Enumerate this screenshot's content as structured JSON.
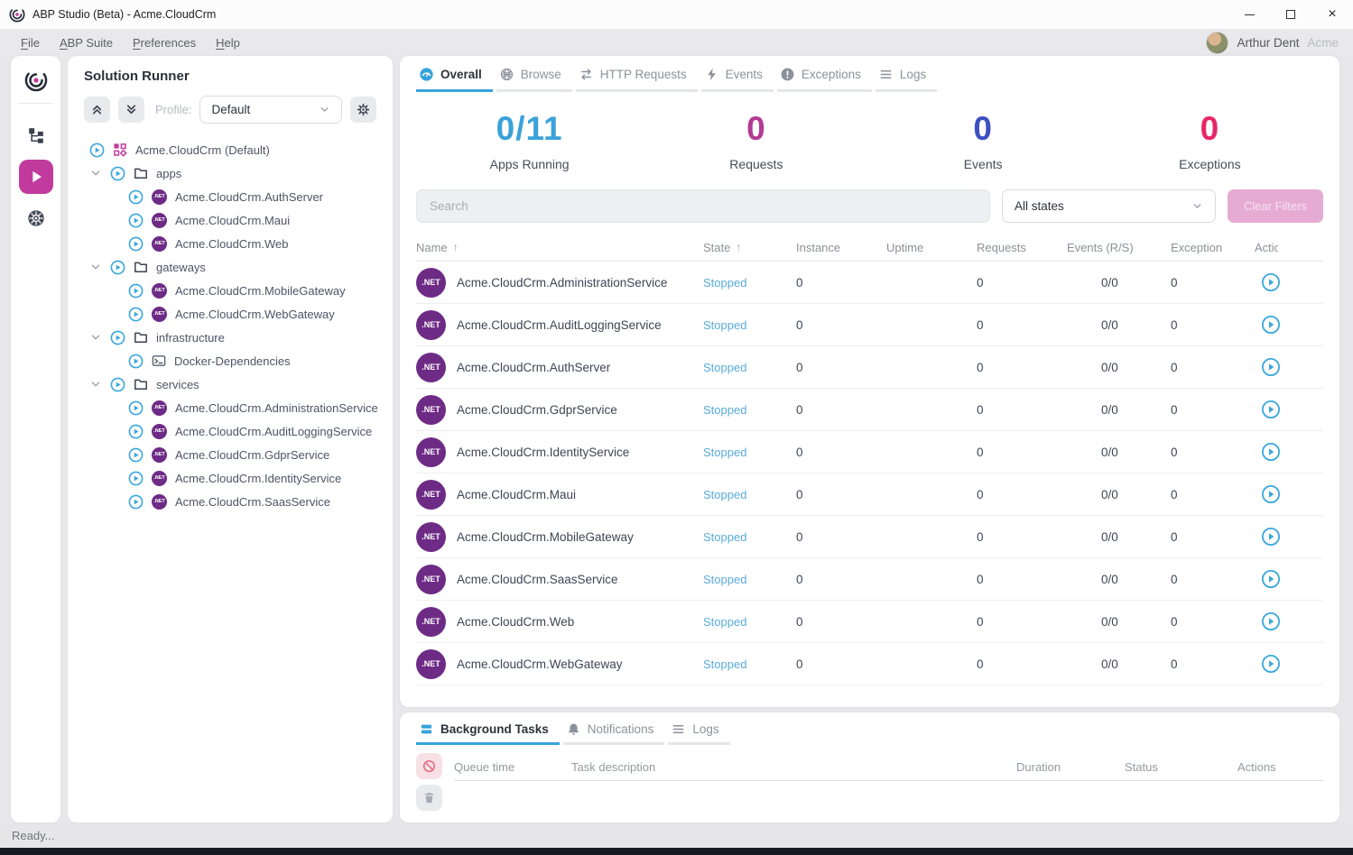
{
  "colors": {
    "blue": "#35a3db",
    "magenta": "#c13a9d",
    "purple": "#6e2b86",
    "stopped": "#58abdd"
  },
  "window": {
    "title": "ABP Studio (Beta) - Acme.CloudCrm"
  },
  "menu": {
    "items": [
      "File",
      "ABP Suite",
      "Preferences",
      "Help"
    ],
    "user_name": "Arthur Dent",
    "user_org": "Acme"
  },
  "rail": {
    "icons": [
      "abp-logo",
      "solution-explorer",
      "run",
      "kubernetes"
    ]
  },
  "solution_runner": {
    "title": "Solution Runner",
    "profile_label": "Profile:",
    "profile_value": "Default",
    "tree": [
      {
        "label": "Acme.CloudCrm (Default)",
        "icon": "solution",
        "level": 0,
        "expandable": false
      },
      {
        "label": "apps",
        "icon": "folder",
        "level": 1,
        "expandable": true
      },
      {
        "label": "Acme.CloudCrm.AuthServer",
        "icon": "dotnet",
        "level": 2,
        "expandable": false
      },
      {
        "label": "Acme.CloudCrm.Maui",
        "icon": "dotnet",
        "level": 2,
        "expandable": false
      },
      {
        "label": "Acme.CloudCrm.Web",
        "icon": "dotnet",
        "level": 2,
        "expandable": false
      },
      {
        "label": "gateways",
        "icon": "folder",
        "level": 1,
        "expandable": true
      },
      {
        "label": "Acme.CloudCrm.MobileGateway",
        "icon": "dotnet",
        "level": 2,
        "expandable": false
      },
      {
        "label": "Acme.CloudCrm.WebGateway",
        "icon": "dotnet",
        "level": 2,
        "expandable": false
      },
      {
        "label": "infrastructure",
        "icon": "folder",
        "level": 1,
        "expandable": true
      },
      {
        "label": "Docker-Dependencies",
        "icon": "console",
        "level": 2,
        "expandable": false
      },
      {
        "label": "services",
        "icon": "folder",
        "level": 1,
        "expandable": true
      },
      {
        "label": "Acme.CloudCrm.AdministrationService",
        "icon": "dotnet",
        "level": 2,
        "expandable": false
      },
      {
        "label": "Acme.CloudCrm.AuditLoggingService",
        "icon": "dotnet",
        "level": 2,
        "expandable": false
      },
      {
        "label": "Acme.CloudCrm.GdprService",
        "icon": "dotnet",
        "level": 2,
        "expandable": false
      },
      {
        "label": "Acme.CloudCrm.IdentityService",
        "icon": "dotnet",
        "level": 2,
        "expandable": false
      },
      {
        "label": "Acme.CloudCrm.SaasService",
        "icon": "dotnet",
        "level": 2,
        "expandable": false
      }
    ]
  },
  "main": {
    "tabs": [
      {
        "label": "Overall",
        "icon": "gauge",
        "active": true
      },
      {
        "label": "Browse",
        "icon": "globe",
        "active": false
      },
      {
        "label": "HTTP Requests",
        "icon": "swap",
        "active": false
      },
      {
        "label": "Events",
        "icon": "bolt",
        "active": false
      },
      {
        "label": "Exceptions",
        "icon": "exclamation",
        "active": false
      },
      {
        "label": "Logs",
        "icon": "list",
        "active": false
      }
    ],
    "stats": [
      {
        "value": "0/11",
        "label": "Apps Running",
        "color": "#3aa2d9"
      },
      {
        "value": "0",
        "label": "Requests",
        "color": "#b23b93"
      },
      {
        "value": "0",
        "label": "Events",
        "color": "#3d4fc1"
      },
      {
        "value": "0",
        "label": "Exceptions",
        "color": "#e82568"
      }
    ],
    "filters": {
      "search_placeholder": "Search",
      "state_filter": "All states",
      "clear_filters": "Clear Filters"
    },
    "table": {
      "columns": [
        {
          "label": "Name",
          "sorted": true
        },
        {
          "label": "State",
          "sorted": true
        },
        {
          "label": "Instance",
          "sorted": false
        },
        {
          "label": "Uptime",
          "sorted": false
        },
        {
          "label": "Requests",
          "sorted": false
        },
        {
          "label": "Events (R/S)",
          "sorted": false
        },
        {
          "label": "Exceptions",
          "sorted": false
        },
        {
          "label": "Actions",
          "sorted": false
        }
      ],
      "rows": [
        {
          "name": "Acme.CloudCrm.AdministrationService",
          "state": "Stopped",
          "instance": "0",
          "uptime": "",
          "requests": "0",
          "events_rs": "0/0",
          "exceptions": "0"
        },
        {
          "name": "Acme.CloudCrm.AuditLoggingService",
          "state": "Stopped",
          "instance": "0",
          "uptime": "",
          "requests": "0",
          "events_rs": "0/0",
          "exceptions": "0"
        },
        {
          "name": "Acme.CloudCrm.AuthServer",
          "state": "Stopped",
          "instance": "0",
          "uptime": "",
          "requests": "0",
          "events_rs": "0/0",
          "exceptions": "0"
        },
        {
          "name": "Acme.CloudCrm.GdprService",
          "state": "Stopped",
          "instance": "0",
          "uptime": "",
          "requests": "0",
          "events_rs": "0/0",
          "exceptions": "0"
        },
        {
          "name": "Acme.CloudCrm.IdentityService",
          "state": "Stopped",
          "instance": "0",
          "uptime": "",
          "requests": "0",
          "events_rs": "0/0",
          "exceptions": "0"
        },
        {
          "name": "Acme.CloudCrm.Maui",
          "state": "Stopped",
          "instance": "0",
          "uptime": "",
          "requests": "0",
          "events_rs": "0/0",
          "exceptions": "0"
        },
        {
          "name": "Acme.CloudCrm.MobileGateway",
          "state": "Stopped",
          "instance": "0",
          "uptime": "",
          "requests": "0",
          "events_rs": "0/0",
          "exceptions": "0"
        },
        {
          "name": "Acme.CloudCrm.SaasService",
          "state": "Stopped",
          "instance": "0",
          "uptime": "",
          "requests": "0",
          "events_rs": "0/0",
          "exceptions": "0"
        },
        {
          "name": "Acme.CloudCrm.Web",
          "state": "Stopped",
          "instance": "0",
          "uptime": "",
          "requests": "0",
          "events_rs": "0/0",
          "exceptions": "0"
        },
        {
          "name": "Acme.CloudCrm.WebGateway",
          "state": "Stopped",
          "instance": "0",
          "uptime": "",
          "requests": "0",
          "events_rs": "0/0",
          "exceptions": "0"
        }
      ]
    }
  },
  "bottom_panel": {
    "tabs": [
      {
        "label": "Background Tasks",
        "icon": "tasks",
        "active": true
      },
      {
        "label": "Notifications",
        "icon": "bell",
        "active": false
      },
      {
        "label": "Logs",
        "icon": "list",
        "active": false
      }
    ],
    "columns": [
      "Queue time",
      "Task description",
      "Duration",
      "Status",
      "Actions"
    ]
  },
  "status_bar": "Ready..."
}
